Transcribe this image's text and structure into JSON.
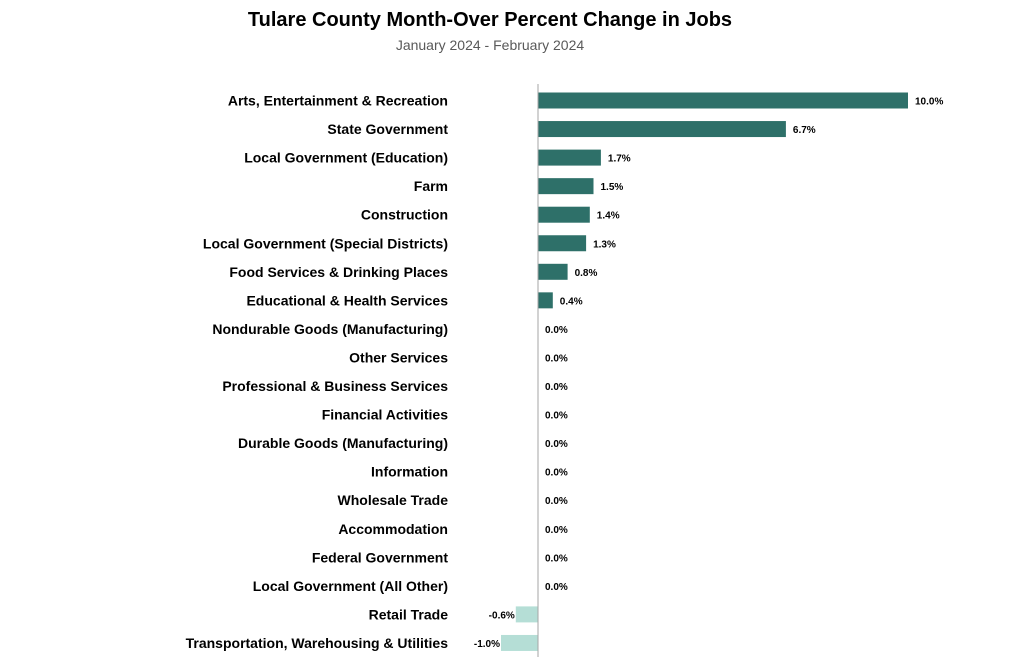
{
  "chart_data": {
    "type": "bar",
    "orientation": "horizontal",
    "title": "Tulare County Month-Over Percent Change in Jobs",
    "subtitle": "January 2024 - February 2024",
    "categories": [
      "Arts, Entertainment & Recreation",
      "State Government",
      "Local Government (Education)",
      "Farm",
      "Construction",
      "Local Government (Special Districts)",
      "Food Services & Drinking Places",
      "Educational & Health Services",
      "Nondurable Goods (Manufacturing)",
      "Other Services",
      "Professional & Business Services",
      "Financial Activities",
      "Durable Goods (Manufacturing)",
      "Information",
      "Wholesale Trade",
      "Accommodation",
      "Federal Government",
      "Local Government (All Other)",
      "Retail Trade",
      "Transportation, Warehousing & Utilities"
    ],
    "values": [
      10.0,
      6.7,
      1.7,
      1.5,
      1.4,
      1.3,
      0.8,
      0.4,
      0.0,
      0.0,
      0.0,
      0.0,
      0.0,
      0.0,
      0.0,
      0.0,
      0.0,
      0.0,
      -0.6,
      -1.0
    ],
    "value_labels": [
      "10.0%",
      "6.7%",
      "1.7%",
      "1.5%",
      "1.4%",
      "1.3%",
      "0.8%",
      "0.4%",
      "0.0%",
      "0.0%",
      "0.0%",
      "0.0%",
      "0.0%",
      "0.0%",
      "0.0%",
      "0.0%",
      "0.0%",
      "0.0%",
      "-0.6%",
      "-1.0%"
    ],
    "unit": "%",
    "xlim": [
      -1.0,
      10.0
    ],
    "grid": false,
    "legend": "none",
    "colors": {
      "positive": "#2e7069",
      "negative": "#b5ded6",
      "axis": "#a6a6a6"
    }
  }
}
